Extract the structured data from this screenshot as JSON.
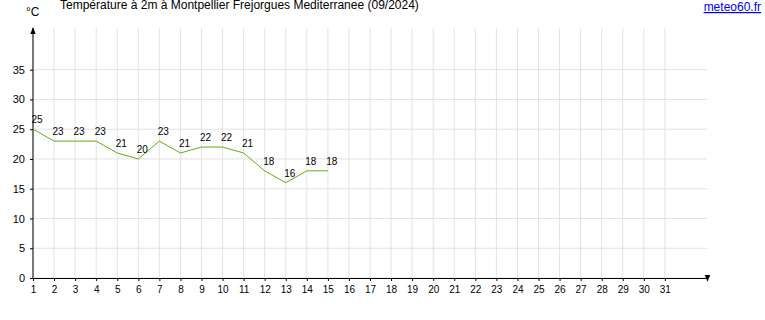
{
  "chart_data": {
    "type": "line",
    "title": "Température à 2m à Montpellier Frejorgues Mediterranee (09/2024)",
    "source": "meteo60.fr",
    "y_label": "°C",
    "x": [
      1,
      2,
      3,
      4,
      5,
      6,
      7,
      8,
      9,
      10,
      11,
      12,
      13,
      14,
      15
    ],
    "values": [
      25,
      23,
      23,
      23,
      21,
      20,
      23,
      21,
      22,
      22,
      21,
      18,
      16,
      18,
      18
    ],
    "color": "#66aa11",
    "xlim": [
      1,
      33
    ],
    "xticks": [
      1,
      2,
      3,
      4,
      5,
      6,
      7,
      8,
      9,
      10,
      11,
      12,
      13,
      14,
      15,
      16,
      17,
      18,
      19,
      20,
      21,
      22,
      23,
      24,
      25,
      26,
      27,
      28,
      29,
      30,
      31
    ],
    "ylim": [
      0,
      42
    ],
    "yticks": [
      0,
      5,
      10,
      15,
      20,
      25,
      30,
      35
    ],
    "grid": true,
    "data_labels": true
  }
}
